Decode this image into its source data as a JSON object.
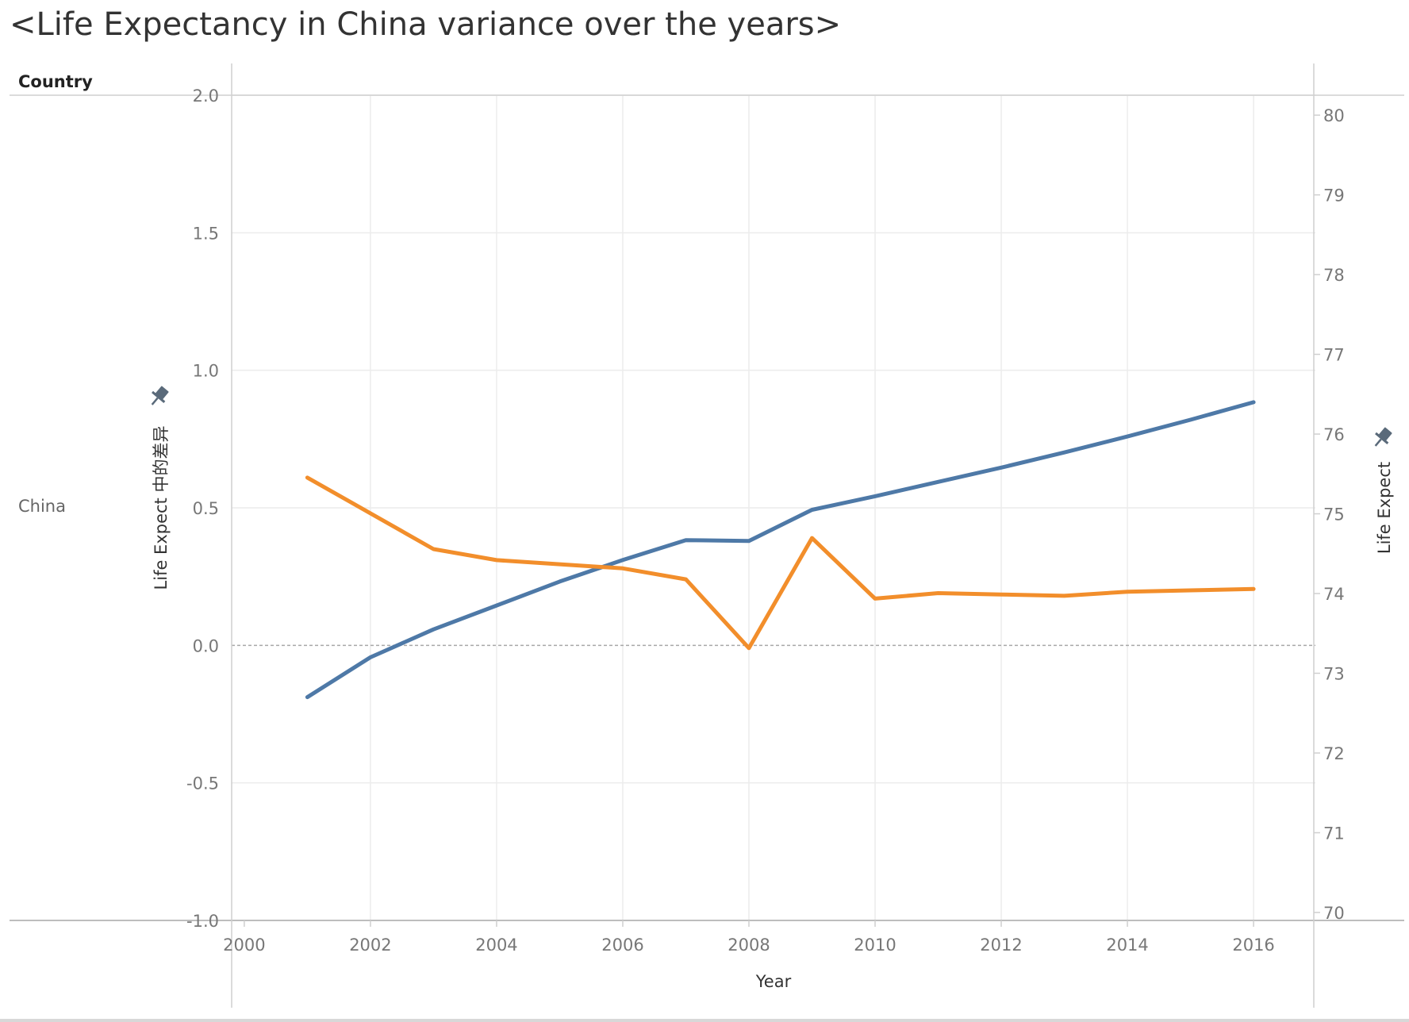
{
  "title": "<Life Expectancy in China variance over the years>",
  "header": {
    "column_label": "Country"
  },
  "rows": [
    {
      "label": "China"
    }
  ],
  "chart_data": {
    "type": "line",
    "title": "<Life Expectancy in China variance over the years>",
    "xlabel": "Year",
    "ylabel_left": "Life Expect 中的差异",
    "ylabel_right": "Life Expect",
    "x_ticks": [
      2000,
      2002,
      2004,
      2006,
      2008,
      2010,
      2012,
      2014,
      2016
    ],
    "xlim": [
      1999.8,
      2016.98
    ],
    "y_left_ticks": [
      "2.0",
      "1.5",
      "1.0",
      "0.5",
      "0.0",
      "-0.5",
      "-1.0"
    ],
    "y_left_lim": [
      -1.0,
      2.0
    ],
    "y_right_ticks": [
      "80",
      "79",
      "78",
      "77",
      "76",
      "75",
      "74",
      "73",
      "72",
      "71",
      "70"
    ],
    "y_right_lim": [
      69.9,
      80.25
    ],
    "reference_line_left": 0.0,
    "grid": true,
    "series": [
      {
        "axis": "right",
        "color": "#4e79a7",
        "x": [
          2001,
          2002,
          2003,
          2004,
          2005,
          2006,
          2007,
          2008,
          2009,
          2010,
          2011,
          2012,
          2013,
          2014,
          2015,
          2016
        ],
        "values": [
          72.7,
          73.2,
          73.55,
          73.85,
          74.15,
          74.42,
          74.67,
          74.66,
          75.05,
          75.22,
          75.4,
          75.58,
          75.77,
          75.97,
          76.18,
          76.4
        ]
      },
      {
        "axis": "left",
        "color": "#f28e2b",
        "x": [
          2001,
          2002,
          2003,
          2004,
          2005,
          2006,
          2007,
          2008,
          2009,
          2010,
          2011,
          2012,
          2013,
          2014,
          2015,
          2016
        ],
        "values": [
          0.61,
          0.48,
          0.35,
          0.31,
          0.295,
          0.28,
          0.24,
          -0.01,
          0.39,
          0.17,
          0.19,
          0.185,
          0.18,
          0.195,
          0.2,
          0.205
        ]
      }
    ],
    "pin_icons": [
      "pin-icon",
      "pin-icon"
    ]
  }
}
